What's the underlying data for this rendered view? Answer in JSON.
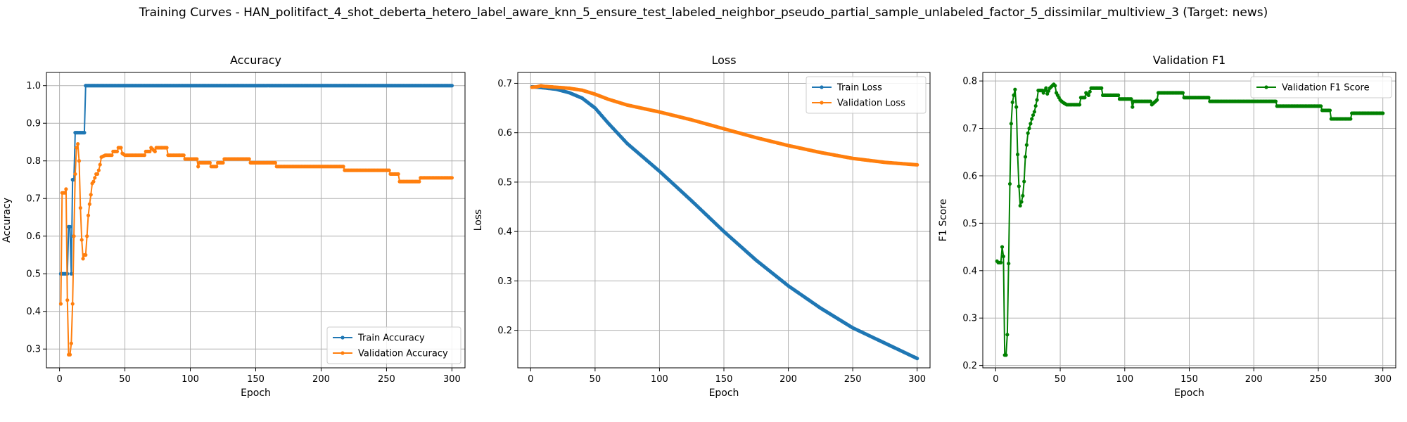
{
  "figure": {
    "suptitle": "Training Curves - HAN_politifact_4_shot_deberta_hetero_label_aware_knn_5_ensure_test_labeled_neighbor_pseudo_partial_sample_unlabeled_factor_5_dissimilar_multiview_3 (Target: news)"
  },
  "chart_data": [
    {
      "type": "line",
      "title": "Accuracy",
      "xlabel": "Epoch",
      "ylabel": "Accuracy",
      "xlim": [
        -10,
        310
      ],
      "ylim": [
        0.25,
        1.035
      ],
      "xticks": [
        0,
        50,
        100,
        150,
        200,
        250,
        300
      ],
      "yticks": [
        0.3,
        0.4,
        0.5,
        0.6,
        0.7,
        0.8,
        0.9,
        1.0
      ],
      "ytick_labels": [
        "0.3",
        "0.4",
        "0.5",
        "0.6",
        "0.7",
        "0.8",
        "0.9",
        "1.0"
      ],
      "grid": true,
      "legend_loc": "lower-right",
      "series": [
        {
          "name": "Train Accuracy",
          "color": "#1f77b4",
          "points": [
            [
              1,
              0.5
            ],
            [
              2,
              0.5
            ],
            [
              3,
              0.5
            ],
            [
              4,
              0.5
            ],
            [
              5,
              0.5
            ],
            [
              6,
              0.5
            ],
            [
              7,
              0.625
            ],
            [
              8,
              0.625
            ],
            [
              9,
              0.5
            ],
            [
              10,
              0.75
            ],
            [
              11,
              0.75
            ],
            [
              12,
              0.875
            ],
            [
              13,
              0.875
            ],
            [
              14,
              0.875
            ],
            [
              15,
              0.875
            ],
            [
              16,
              0.875
            ],
            [
              17,
              0.875
            ],
            [
              18,
              0.875
            ],
            [
              19,
              0.875
            ],
            [
              20,
              1.0
            ],
            [
              300,
              1.0
            ]
          ]
        },
        {
          "name": "Validation Accuracy",
          "color": "#ff7f0e",
          "points": [
            [
              1,
              0.42
            ],
            [
              2,
              0.715
            ],
            [
              3,
              0.715
            ],
            [
              4,
              0.715
            ],
            [
              5,
              0.725
            ],
            [
              6,
              0.43
            ],
            [
              7,
              0.285
            ],
            [
              8,
              0.285
            ],
            [
              9,
              0.315
            ],
            [
              10,
              0.42
            ],
            [
              11,
              0.6
            ],
            [
              12,
              0.765
            ],
            [
              13,
              0.835
            ],
            [
              14,
              0.845
            ],
            [
              15,
              0.8
            ],
            [
              16,
              0.675
            ],
            [
              17,
              0.59
            ],
            [
              18,
              0.54
            ],
            [
              19,
              0.55
            ],
            [
              20,
              0.55
            ],
            [
              21,
              0.6
            ],
            [
              22,
              0.655
            ],
            [
              23,
              0.685
            ],
            [
              24,
              0.71
            ],
            [
              25,
              0.74
            ],
            [
              26,
              0.745
            ],
            [
              27,
              0.755
            ],
            [
              28,
              0.765
            ],
            [
              29,
              0.765
            ],
            [
              30,
              0.775
            ],
            [
              31,
              0.79
            ],
            [
              32,
              0.81
            ],
            [
              35,
              0.815
            ],
            [
              40,
              0.815
            ],
            [
              41,
              0.825
            ],
            [
              44,
              0.825
            ],
            [
              45,
              0.835
            ],
            [
              47,
              0.835
            ],
            [
              48,
              0.82
            ],
            [
              50,
              0.815
            ],
            [
              65,
              0.815
            ],
            [
              66,
              0.825
            ],
            [
              69,
              0.825
            ],
            [
              70,
              0.835
            ],
            [
              73,
              0.825
            ],
            [
              74,
              0.835
            ],
            [
              82,
              0.835
            ],
            [
              83,
              0.815
            ],
            [
              95,
              0.815
            ],
            [
              96,
              0.805
            ],
            [
              105,
              0.805
            ],
            [
              106,
              0.785
            ],
            [
              107,
              0.795
            ],
            [
              115,
              0.795
            ],
            [
              116,
              0.785
            ],
            [
              120,
              0.785
            ],
            [
              121,
              0.795
            ],
            [
              125,
              0.795
            ],
            [
              126,
              0.805
            ],
            [
              145,
              0.805
            ],
            [
              146,
              0.795
            ],
            [
              165,
              0.795
            ],
            [
              166,
              0.785
            ],
            [
              217,
              0.785
            ],
            [
              218,
              0.775
            ],
            [
              252,
              0.775
            ],
            [
              253,
              0.765
            ],
            [
              259,
              0.765
            ],
            [
              260,
              0.745
            ],
            [
              275,
              0.745
            ],
            [
              276,
              0.755
            ],
            [
              300,
              0.755
            ]
          ]
        }
      ]
    },
    {
      "type": "line",
      "title": "Loss",
      "xlabel": "Epoch",
      "ylabel": "Loss",
      "xlim": [
        -10,
        310
      ],
      "ylim": [
        0.124,
        0.722
      ],
      "xticks": [
        0,
        50,
        100,
        150,
        200,
        250,
        300
      ],
      "yticks": [
        0.2,
        0.3,
        0.4,
        0.5,
        0.6,
        0.7
      ],
      "ytick_labels": [
        "0.2",
        "0.3",
        "0.4",
        "0.5",
        "0.6",
        "0.7"
      ],
      "grid": true,
      "legend_loc": "top-right",
      "series": [
        {
          "name": "Train Loss",
          "color": "#1f77b4",
          "points": [
            [
              1,
              0.693
            ],
            [
              10,
              0.691
            ],
            [
              20,
              0.688
            ],
            [
              30,
              0.681
            ],
            [
              40,
              0.67
            ],
            [
              50,
              0.65
            ],
            [
              60,
              0.62
            ],
            [
              75,
              0.578
            ],
            [
              100,
              0.522
            ],
            [
              125,
              0.462
            ],
            [
              150,
              0.4
            ],
            [
              175,
              0.342
            ],
            [
              200,
              0.29
            ],
            [
              225,
              0.245
            ],
            [
              250,
              0.205
            ],
            [
              275,
              0.174
            ],
            [
              300,
              0.143
            ]
          ]
        },
        {
          "name": "Validation Loss",
          "color": "#ff7f0e",
          "points": [
            [
              1,
              0.692
            ],
            [
              5,
              0.693
            ],
            [
              8,
              0.695
            ],
            [
              10,
              0.694
            ],
            [
              20,
              0.692
            ],
            [
              30,
              0.69
            ],
            [
              40,
              0.686
            ],
            [
              50,
              0.678
            ],
            [
              60,
              0.668
            ],
            [
              75,
              0.656
            ],
            [
              100,
              0.642
            ],
            [
              125,
              0.626
            ],
            [
              150,
              0.608
            ],
            [
              175,
              0.59
            ],
            [
              200,
              0.574
            ],
            [
              225,
              0.56
            ],
            [
              250,
              0.548
            ],
            [
              275,
              0.54
            ],
            [
              300,
              0.535
            ]
          ]
        }
      ]
    },
    {
      "type": "line",
      "title": "Validation F1",
      "xlabel": "Epoch",
      "ylabel": "F1 Score",
      "xlim": [
        -10,
        310
      ],
      "ylim": [
        0.195,
        0.818
      ],
      "xticks": [
        0,
        50,
        100,
        150,
        200,
        250,
        300
      ],
      "yticks": [
        0.2,
        0.3,
        0.4,
        0.5,
        0.6,
        0.7,
        0.8
      ],
      "ytick_labels": [
        "0.2",
        "0.3",
        "0.4",
        "0.5",
        "0.6",
        "0.7",
        "0.8"
      ],
      "grid": true,
      "legend_loc": "top-right",
      "series": [
        {
          "name": "Validation F1 Score",
          "color": "#008000",
          "points": [
            [
              1,
              0.42
            ],
            [
              2,
              0.417
            ],
            [
              3,
              0.417
            ],
            [
              4,
              0.417
            ],
            [
              5,
              0.45
            ],
            [
              6,
              0.43
            ],
            [
              7,
              0.222
            ],
            [
              8,
              0.222
            ],
            [
              9,
              0.265
            ],
            [
              10,
              0.415
            ],
            [
              11,
              0.583
            ],
            [
              12,
              0.71
            ],
            [
              13,
              0.755
            ],
            [
              14,
              0.77
            ],
            [
              15,
              0.782
            ],
            [
              16,
              0.745
            ],
            [
              17,
              0.645
            ],
            [
              18,
              0.578
            ],
            [
              19,
              0.537
            ],
            [
              20,
              0.545
            ],
            [
              21,
              0.558
            ],
            [
              22,
              0.588
            ],
            [
              23,
              0.64
            ],
            [
              24,
              0.665
            ],
            [
              25,
              0.69
            ],
            [
              26,
              0.7
            ],
            [
              27,
              0.71
            ],
            [
              28,
              0.72
            ],
            [
              29,
              0.728
            ],
            [
              30,
              0.735
            ],
            [
              32,
              0.76
            ],
            [
              33,
              0.78
            ],
            [
              36,
              0.78
            ],
            [
              37,
              0.775
            ],
            [
              39,
              0.785
            ],
            [
              40,
              0.773
            ],
            [
              42,
              0.785
            ],
            [
              45,
              0.793
            ],
            [
              46,
              0.79
            ],
            [
              47,
              0.775
            ],
            [
              49,
              0.765
            ],
            [
              50,
              0.76
            ],
            [
              52,
              0.755
            ],
            [
              55,
              0.75
            ],
            [
              65,
              0.75
            ],
            [
              66,
              0.765
            ],
            [
              69,
              0.765
            ],
            [
              70,
              0.775
            ],
            [
              72,
              0.77
            ],
            [
              74,
              0.785
            ],
            [
              82,
              0.785
            ],
            [
              83,
              0.77
            ],
            [
              95,
              0.77
            ],
            [
              96,
              0.762
            ],
            [
              105,
              0.762
            ],
            [
              106,
              0.745
            ],
            [
              107,
              0.757
            ],
            [
              120,
              0.757
            ],
            [
              121,
              0.75
            ],
            [
              125,
              0.76
            ],
            [
              126,
              0.775
            ],
            [
              145,
              0.775
            ],
            [
              146,
              0.765
            ],
            [
              165,
              0.765
            ],
            [
              166,
              0.757
            ],
            [
              217,
              0.757
            ],
            [
              218,
              0.747
            ],
            [
              252,
              0.747
            ],
            [
              253,
              0.738
            ],
            [
              259,
              0.738
            ],
            [
              260,
              0.72
            ],
            [
              275,
              0.72
            ],
            [
              276,
              0.732
            ],
            [
              300,
              0.732
            ]
          ]
        }
      ]
    }
  ]
}
